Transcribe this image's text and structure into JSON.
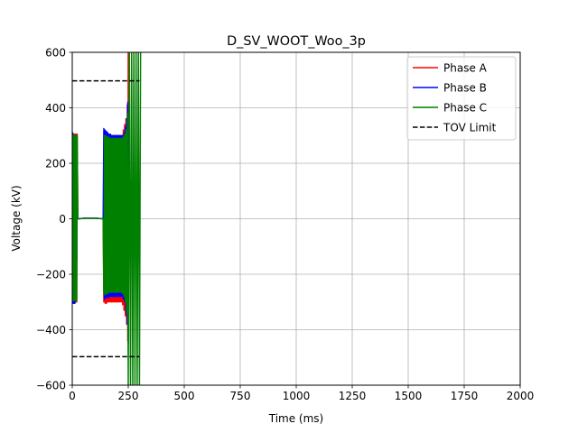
{
  "chart_data": {
    "type": "line",
    "title": "D_SV_WOOT_Woo_3p",
    "xlabel": "Time (ms)",
    "ylabel": "Voltage (kV)",
    "xlim": [
      0,
      2000
    ],
    "ylim": [
      -600,
      600
    ],
    "xticks": [
      0,
      250,
      500,
      750,
      1000,
      1250,
      1500,
      1750,
      2000
    ],
    "yticks": [
      -600,
      -400,
      -200,
      0,
      200,
      400,
      600
    ],
    "xtick_labels": [
      "0",
      "250",
      "500",
      "750",
      "1000",
      "1250",
      "1500",
      "1750",
      "2000"
    ],
    "ytick_labels": [
      "−600",
      "−400",
      "−200",
      "0",
      "200",
      "400",
      "600"
    ],
    "grid": true,
    "legend_position": "top-right",
    "series": [
      {
        "name": "Phase A",
        "color": "#ff0000",
        "style": "solid",
        "x": [
          0,
          2,
          4,
          6,
          8,
          10,
          12,
          14,
          16,
          18,
          20,
          22,
          25,
          30,
          60,
          100,
          138,
          141,
          144,
          147,
          150,
          153,
          156,
          159,
          162,
          165,
          168,
          171,
          174,
          177,
          180,
          183,
          186,
          189,
          192,
          195,
          198,
          201,
          204,
          207,
          210,
          213,
          216,
          219,
          222,
          225,
          228,
          231,
          234,
          237,
          240,
          243,
          246,
          248,
          250
        ],
        "y": [
          0,
          305,
          -300,
          305,
          -300,
          305,
          -300,
          305,
          -300,
          305,
          -300,
          305,
          0,
          0,
          2,
          2,
          0,
          -300,
          300,
          -305,
          300,
          -305,
          300,
          -300,
          300,
          -300,
          300,
          -300,
          300,
          -300,
          300,
          -300,
          300,
          -300,
          300,
          -300,
          300,
          -300,
          300,
          -300,
          300,
          -300,
          300,
          -300,
          300,
          -310,
          320,
          -330,
          340,
          -350,
          360,
          -380,
          410,
          -440,
          600
        ]
      },
      {
        "name": "Phase B",
        "color": "#0000ff",
        "style": "solid",
        "x": [
          0,
          2,
          4,
          6,
          8,
          10,
          12,
          14,
          16,
          18,
          20,
          22,
          25,
          30,
          60,
          100,
          138,
          141,
          144,
          147,
          150,
          153,
          156,
          159,
          162,
          165,
          168,
          171,
          174,
          177,
          180,
          183,
          186,
          189,
          192,
          195,
          198,
          201,
          204,
          207,
          210,
          213,
          216,
          219,
          222,
          225,
          228,
          231,
          234,
          237,
          240,
          243,
          246,
          248,
          250
        ],
        "y": [
          0,
          310,
          -305,
          300,
          -305,
          300,
          -305,
          300,
          -160,
          150,
          -150,
          80,
          0,
          0,
          2,
          2,
          0,
          325,
          -290,
          320,
          -285,
          315,
          -285,
          310,
          -285,
          305,
          -280,
          305,
          -280,
          300,
          -280,
          300,
          -280,
          300,
          -280,
          300,
          -280,
          300,
          -280,
          300,
          -280,
          300,
          -280,
          300,
          -280,
          300,
          -290,
          310,
          -300,
          330,
          -340,
          360,
          -380,
          420,
          -450
        ]
      },
      {
        "name": "Phase C",
        "color": "#008000",
        "style": "solid",
        "x": [
          0,
          2,
          4,
          6,
          8,
          10,
          12,
          14,
          16,
          18,
          20,
          22,
          25,
          30,
          60,
          100,
          138,
          141,
          144,
          147,
          150,
          153,
          156,
          159,
          162,
          165,
          168,
          171,
          174,
          177,
          180,
          183,
          186,
          189,
          192,
          195,
          198,
          201,
          204,
          207,
          210,
          213,
          216,
          219,
          222,
          225,
          228,
          231,
          234,
          237,
          240,
          243,
          246,
          250,
          255,
          260,
          265,
          270,
          275,
          280,
          285,
          290,
          295,
          300,
          305
        ],
        "y": [
          0,
          300,
          -295,
          300,
          -295,
          300,
          -295,
          300,
          -295,
          300,
          -295,
          300,
          0,
          0,
          2,
          2,
          0,
          -270,
          300,
          -275,
          300,
          -270,
          295,
          -270,
          295,
          -265,
          290,
          -265,
          290,
          -265,
          290,
          -265,
          290,
          -265,
          290,
          -265,
          290,
          -265,
          290,
          -265,
          290,
          -265,
          290,
          -265,
          290,
          -270,
          295,
          -280,
          305,
          -300,
          320,
          -340,
          380,
          -600,
          600,
          -600,
          600,
          -600,
          600,
          -600,
          600,
          -600,
          600,
          -600,
          600
        ]
      },
      {
        "name": "TOV Limit",
        "color": "#000000",
        "style": "dashed",
        "x": [
          0,
          300
        ],
        "y": [
          497,
          497
        ]
      },
      {
        "name": "TOV Limit (lower)",
        "color": "#000000",
        "style": "dashed",
        "x": [
          0,
          300
        ],
        "y": [
          -497,
          -497
        ]
      }
    ],
    "legend": [
      {
        "label": "Phase A",
        "color": "#ff0000",
        "style": "solid"
      },
      {
        "label": "Phase B",
        "color": "#0000ff",
        "style": "solid"
      },
      {
        "label": "Phase C",
        "color": "#008000",
        "style": "solid"
      },
      {
        "label": "TOV Limit",
        "color": "#000000",
        "style": "dashed"
      }
    ]
  }
}
